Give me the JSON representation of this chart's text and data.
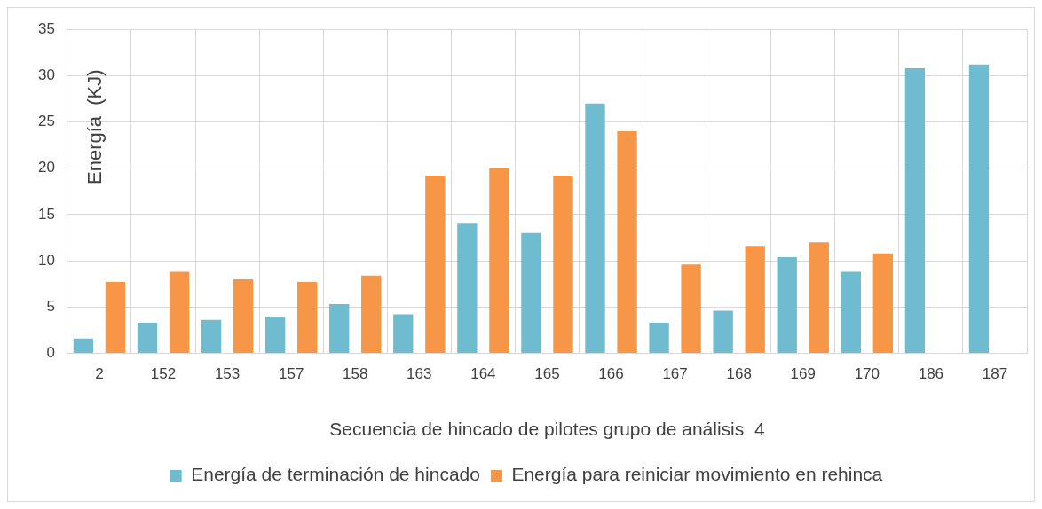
{
  "chart_data": {
    "type": "bar",
    "xlabel": "Secuencia de hincado de pilotes grupo de análisis  4",
    "ylabel": "Energía  (KJ)",
    "categories": [
      "2",
      "152",
      "153",
      "157",
      "158",
      "163",
      "164",
      "165",
      "166",
      "167",
      "168",
      "169",
      "170",
      "186",
      "187"
    ],
    "series": [
      {
        "name": "Energía de terminación de hincado",
        "color": "#6fbcd1",
        "values": [
          1.6,
          3.3,
          3.6,
          3.9,
          5.3,
          4.2,
          14,
          13,
          27,
          3.3,
          4.6,
          10.4,
          8.8,
          30.8,
          31.2
        ]
      },
      {
        "name": "Energía para reiniciar movimiento en rehinca",
        "color": "#f79646",
        "values": [
          7.7,
          8.8,
          8,
          7.7,
          8.4,
          19.2,
          20,
          19.2,
          24,
          9.6,
          11.6,
          12,
          10.8,
          null,
          null
        ]
      }
    ],
    "ylim": [
      0,
      35
    ],
    "yticks": [
      0,
      5,
      10,
      15,
      20,
      25,
      30,
      35
    ],
    "grid": true,
    "legend": "bottom"
  }
}
